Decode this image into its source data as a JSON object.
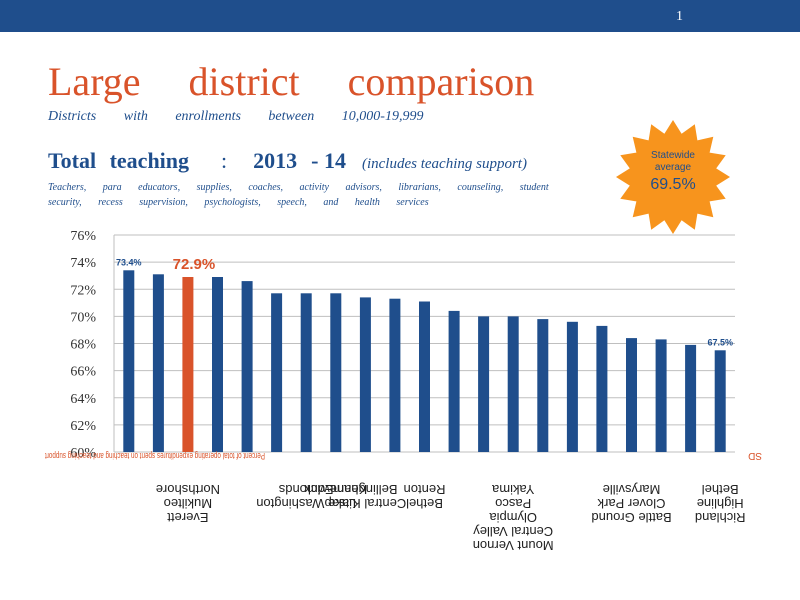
{
  "header": {
    "page_number": "1"
  },
  "title": "Large district comparison",
  "subtitle": "Districts with enrollments between 10,000-19,999",
  "heading": {
    "label": "Total teaching",
    "colon": ":",
    "year_start": "2013",
    "year_end": "- 14",
    "note": "(includes teaching support)"
  },
  "description": "Teachers, para educators, supplies, coaches, activity advisors, librarians, counseling, student security, recess supervision, psychologists, speech, and health services",
  "badge": {
    "line1": "Statewide",
    "line2": "average",
    "value": "69.5%",
    "color": "#f7941d"
  },
  "chart_data": {
    "type": "bar",
    "ylim": [
      60,
      76
    ],
    "yticks": [
      60,
      62,
      64,
      66,
      68,
      70,
      72,
      74,
      76
    ],
    "ytick_labels": [
      "60%",
      "62%",
      "64%",
      "66%",
      "68%",
      "70%",
      "72%",
      "74%",
      "76%"
    ],
    "values": [
      73.4,
      73.1,
      72.9,
      72.9,
      72.6,
      71.7,
      71.7,
      71.7,
      71.4,
      71.3,
      71.1,
      70.4,
      70.0,
      70.0,
      69.8,
      69.6,
      69.3,
      68.4,
      68.3,
      67.9,
      67.5
    ],
    "highlight_index": 2,
    "data_labels": [
      {
        "index": 0,
        "text": "73.4%"
      },
      {
        "index": 2,
        "text": "72.9%"
      },
      {
        "index": 20,
        "text": "67.5%"
      }
    ],
    "bar_color": "#1f4e8c",
    "highlight_color": "#d9532a",
    "grid": true,
    "category_labels": [
      {
        "index": 2,
        "lines": [
          "Northshore",
          "Mukilteo",
          "Everett"
        ]
      },
      {
        "index": 6,
        "lines": [
          "Edmonds",
          "Lake Washington"
        ]
      },
      {
        "index": 7,
        "lines": [
          "Kennewick"
        ]
      },
      {
        "index": 8,
        "lines": [
          "Bellingham",
          "Central Kitsap"
        ]
      },
      {
        "index": 10,
        "lines": [
          "Renton",
          "Bethel"
        ]
      },
      {
        "index": 13,
        "lines": [
          "Yakima",
          "Pasco",
          "Olympia",
          "Central Valley",
          "Mount Vernon"
        ]
      },
      {
        "index": 17,
        "lines": [
          "Marysville",
          "Clover Park",
          "Battle Ground"
        ]
      },
      {
        "index": 20,
        "lines": [
          "Bethel",
          "Highline",
          "Richland"
        ]
      }
    ],
    "footnote_left": "Percent of total operating expenditures spent on teaching and teaching support",
    "footnote_right": "SD"
  }
}
